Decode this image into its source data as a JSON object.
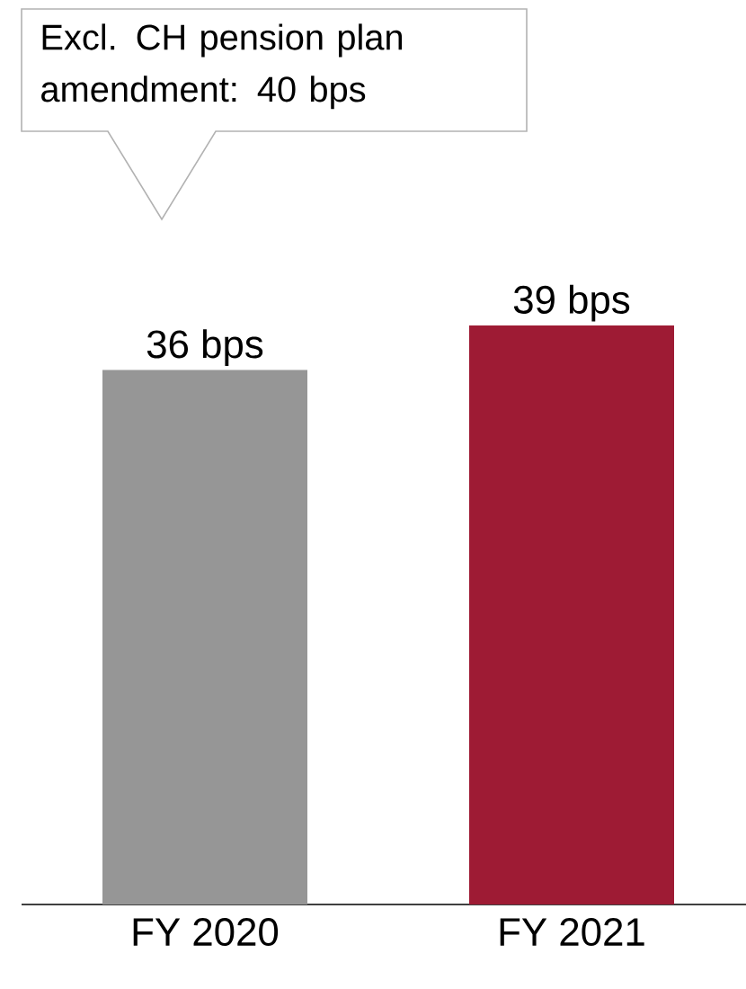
{
  "chart_data": {
    "type": "bar",
    "categories": [
      "FY 2020",
      "FY 2021"
    ],
    "values": [
      36,
      39
    ],
    "colors": [
      "#969696",
      "#9e1b34"
    ],
    "value_labels": [
      "36 bps",
      "39 bps"
    ],
    "annotations": [
      "Excl. CH pension plan amendment: 40 bps"
    ]
  }
}
